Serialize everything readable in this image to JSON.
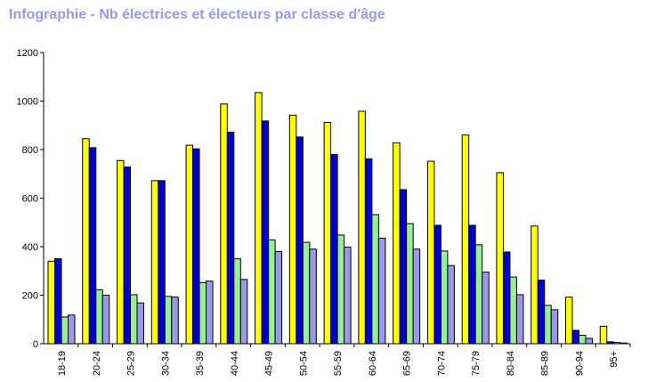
{
  "chart_data": {
    "type": "bar",
    "title": "Infographie - Nb électrices et électeurs par classe d'âge",
    "xlabel": "",
    "ylabel": "",
    "ylim": [
      0,
      1200
    ],
    "yticks": [
      0,
      200,
      400,
      600,
      800,
      1000,
      1200
    ],
    "grid": false,
    "legend": "none",
    "categories": [
      "18-19",
      "20-24",
      "25-29",
      "30-34",
      "35-39",
      "40-44",
      "45-49",
      "50-54",
      "55-59",
      "60-64",
      "65-69",
      "70-74",
      "75-79",
      "80-84",
      "85-89",
      "90-94",
      "95+"
    ],
    "series": [
      {
        "color": "#ffff00",
        "values": [
          340,
          845,
          755,
          672,
          818,
          988,
          1035,
          942,
          912,
          958,
          828,
          752,
          860,
          705,
          485,
          192,
          72
        ]
      },
      {
        "color": "#0000cc",
        "values": [
          350,
          808,
          728,
          672,
          803,
          872,
          918,
          852,
          780,
          762,
          635,
          488,
          488,
          378,
          262,
          55,
          8
        ]
      },
      {
        "color": "#99ee99",
        "values": [
          110,
          222,
          202,
          195,
          252,
          350,
          428,
          418,
          448,
          532,
          495,
          382,
          408,
          275,
          158,
          35,
          5
        ]
      },
      {
        "color": "#9999e6",
        "values": [
          118,
          200,
          168,
          192,
          258,
          265,
          380,
          390,
          398,
          435,
          390,
          322,
          295,
          202,
          140,
          22,
          3
        ]
      }
    ]
  }
}
